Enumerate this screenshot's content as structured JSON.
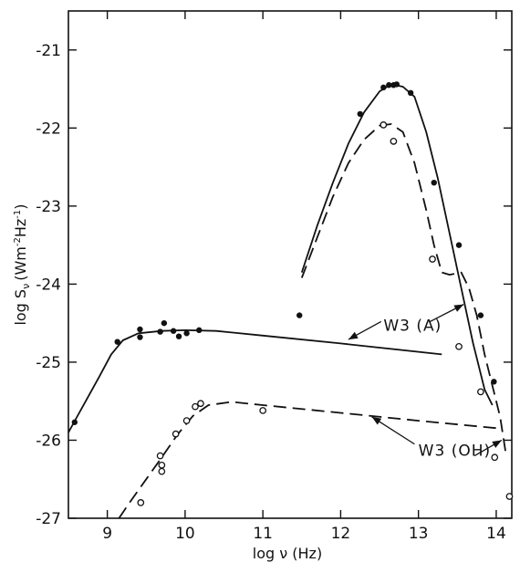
{
  "chart_data": {
    "type": "line",
    "title": "",
    "xlabel": "log ν (Hz)",
    "ylabel": "log S",
    "ylabel_sub": "ν",
    "ylabel_unit_open": "(Wm",
    "ylabel_unit_sup1": "-2",
    "ylabel_unit_mid": "Hz",
    "ylabel_unit_sup2": "-1",
    "ylabel_unit_close": ")",
    "xlim": [
      8.5,
      14.2
    ],
    "ylim": [
      -27,
      -20.5
    ],
    "xticks": [
      9,
      10,
      11,
      12,
      13,
      14
    ],
    "xtick_labels": [
      "9",
      "10",
      "11",
      "12",
      "13",
      "14"
    ],
    "yticks": [
      -27,
      -26,
      -25,
      -24,
      -23,
      -22,
      -21
    ],
    "ytick_labels": [
      "-27",
      "-26",
      "-25",
      "-24",
      "-23",
      "-22",
      "-21"
    ],
    "grid": false,
    "annotations": [
      {
        "text": "W3 (A)",
        "x": 12.55,
        "y": -24.6
      },
      {
        "text": "W3 (OH)",
        "x": 13.0,
        "y": -26.2
      }
    ],
    "series": [
      {
        "style": "solid",
        "points": [
          [
            8.5,
            -25.9
          ],
          [
            8.6,
            -25.72
          ],
          [
            8.75,
            -25.45
          ],
          [
            8.9,
            -25.18
          ],
          [
            9.05,
            -24.9
          ],
          [
            9.2,
            -24.72
          ],
          [
            9.4,
            -24.63
          ],
          [
            9.7,
            -24.6
          ],
          [
            10.0,
            -24.59
          ],
          [
            10.4,
            -24.6
          ],
          [
            11.0,
            -24.66
          ],
          [
            12.0,
            -24.76
          ],
          [
            13.3,
            -24.9
          ]
        ]
      },
      {
        "style": "solid",
        "points": [
          [
            11.5,
            -23.85
          ],
          [
            11.7,
            -23.25
          ],
          [
            11.9,
            -22.7
          ],
          [
            12.1,
            -22.2
          ],
          [
            12.3,
            -21.8
          ],
          [
            12.5,
            -21.53
          ],
          [
            12.65,
            -21.44
          ],
          [
            12.8,
            -21.47
          ],
          [
            12.95,
            -21.6
          ],
          [
            13.1,
            -22.05
          ],
          [
            13.25,
            -22.65
          ],
          [
            13.4,
            -23.35
          ],
          [
            13.55,
            -24.05
          ],
          [
            13.7,
            -24.75
          ],
          [
            13.85,
            -25.35
          ],
          [
            13.95,
            -25.55
          ]
        ]
      },
      {
        "style": "dashed",
        "points": [
          [
            9.15,
            -27.0
          ],
          [
            9.3,
            -26.78
          ],
          [
            9.5,
            -26.5
          ],
          [
            9.7,
            -26.22
          ],
          [
            9.9,
            -25.93
          ],
          [
            10.1,
            -25.69
          ],
          [
            10.3,
            -25.55
          ],
          [
            10.6,
            -25.51
          ],
          [
            11.0,
            -25.55
          ],
          [
            12.0,
            -25.65
          ],
          [
            13.0,
            -25.75
          ],
          [
            14.05,
            -25.85
          ]
        ]
      },
      {
        "style": "dashed",
        "points": [
          [
            11.5,
            -23.92
          ],
          [
            11.7,
            -23.4
          ],
          [
            11.9,
            -22.88
          ],
          [
            12.1,
            -22.45
          ],
          [
            12.3,
            -22.15
          ],
          [
            12.5,
            -21.97
          ],
          [
            12.65,
            -21.95
          ],
          [
            12.8,
            -22.05
          ],
          [
            12.95,
            -22.45
          ],
          [
            13.1,
            -23.05
          ],
          [
            13.2,
            -23.5
          ],
          [
            13.3,
            -23.85
          ],
          [
            13.4,
            -23.88
          ],
          [
            13.55,
            -23.85
          ],
          [
            13.65,
            -24.05
          ],
          [
            13.75,
            -24.4
          ],
          [
            13.85,
            -24.9
          ],
          [
            13.95,
            -25.3
          ],
          [
            14.05,
            -25.7
          ],
          [
            14.12,
            -26.15
          ]
        ]
      }
    ],
    "filled_points": [
      [
        8.58,
        -25.77
      ],
      [
        9.13,
        -24.74
      ],
      [
        9.42,
        -24.58
      ],
      [
        9.42,
        -24.68
      ],
      [
        9.68,
        -24.61
      ],
      [
        9.73,
        -24.5
      ],
      [
        9.85,
        -24.6
      ],
      [
        9.92,
        -24.67
      ],
      [
        10.02,
        -24.63
      ],
      [
        10.18,
        -24.59
      ],
      [
        11.47,
        -24.4
      ],
      [
        12.25,
        -21.82
      ],
      [
        12.55,
        -21.48
      ],
      [
        12.62,
        -21.45
      ],
      [
        12.68,
        -21.45
      ],
      [
        12.72,
        -21.44
      ],
      [
        12.9,
        -21.55
      ],
      [
        13.2,
        -22.7
      ],
      [
        13.52,
        -23.5
      ],
      [
        13.8,
        -24.4
      ],
      [
        13.97,
        -25.25
      ]
    ],
    "open_points": [
      [
        9.43,
        -26.8
      ],
      [
        9.68,
        -26.2
      ],
      [
        9.7,
        -26.32
      ],
      [
        9.7,
        -26.4
      ],
      [
        9.88,
        -25.92
      ],
      [
        10.02,
        -25.75
      ],
      [
        10.13,
        -25.57
      ],
      [
        10.2,
        -25.53
      ],
      [
        11.0,
        -25.62
      ],
      [
        12.55,
        -21.96
      ],
      [
        12.68,
        -22.17
      ],
      [
        13.18,
        -23.68
      ],
      [
        13.52,
        -24.8
      ],
      [
        13.8,
        -25.38
      ],
      [
        13.98,
        -26.22
      ],
      [
        14.17,
        -26.72
      ]
    ]
  }
}
